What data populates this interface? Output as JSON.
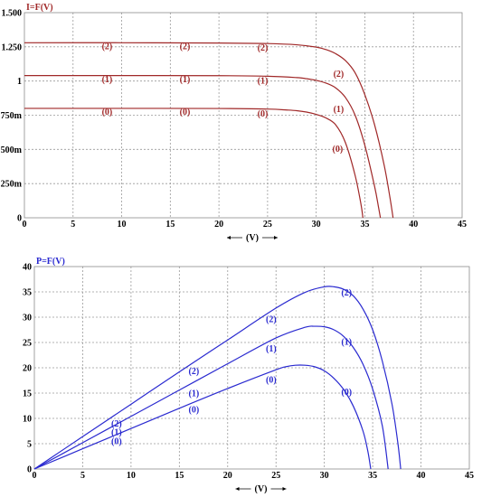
{
  "chart_data": [
    {
      "type": "line",
      "title": "I=F(V)",
      "xlabel": "(V)",
      "ylabel": "",
      "xlim": [
        0,
        45
      ],
      "ylim": [
        0,
        1.5
      ],
      "x_ticks": [
        0,
        5,
        10,
        15,
        20,
        25,
        30,
        35,
        40,
        45
      ],
      "x_tick_labels": [
        "0",
        "5",
        "10",
        "15",
        "20",
        "25",
        "30",
        "35",
        "40",
        "45"
      ],
      "y_ticks": [
        0,
        0.25,
        0.5,
        0.75,
        1.0,
        1.25,
        1.5
      ],
      "y_tick_labels": [
        "0",
        "250m",
        "500m",
        "750m",
        "1",
        "1.250",
        "1.500"
      ],
      "grid": true,
      "color": "#a02828",
      "series": [
        {
          "label": "(0)",
          "points": [
            [
              0,
              0.8
            ],
            [
              10,
              0.8
            ],
            [
              20,
              0.799
            ],
            [
              25,
              0.795
            ],
            [
              27,
              0.788
            ],
            [
              28,
              0.783
            ],
            [
              29,
              0.773
            ],
            [
              30,
              0.756
            ],
            [
              31,
              0.73
            ],
            [
              32,
              0.68
            ],
            [
              33,
              0.55
            ],
            [
              34,
              0.31
            ],
            [
              34.6,
              0.1
            ],
            [
              34.8,
              0.0
            ]
          ],
          "annotations": [
            [
              8.5,
              0.775
            ],
            [
              16.5,
              0.775
            ],
            [
              24.5,
              0.762
            ],
            [
              32.2,
              0.505
            ]
          ]
        },
        {
          "label": "(1)",
          "points": [
            [
              0,
              1.04
            ],
            [
              10,
              1.04
            ],
            [
              20,
              1.039
            ],
            [
              25,
              1.035
            ],
            [
              28,
              1.025
            ],
            [
              29,
              1.017
            ],
            [
              30,
              1.005
            ],
            [
              31,
              0.985
            ],
            [
              32,
              0.95
            ],
            [
              33,
              0.88
            ],
            [
              34,
              0.75
            ],
            [
              35,
              0.53
            ],
            [
              36,
              0.23
            ],
            [
              36.4,
              0.08
            ],
            [
              36.6,
              0.0
            ]
          ],
          "annotations": [
            [
              8.5,
              1.015
            ],
            [
              16.5,
              1.015
            ],
            [
              24.5,
              1.005
            ],
            [
              32.3,
              0.795
            ]
          ]
        },
        {
          "label": "(2)",
          "points": [
            [
              0,
              1.28
            ],
            [
              10,
              1.28
            ],
            [
              20,
              1.278
            ],
            [
              25,
              1.274
            ],
            [
              28,
              1.265
            ],
            [
              30,
              1.248
            ],
            [
              31,
              1.23
            ],
            [
              32,
              1.2
            ],
            [
              33,
              1.15
            ],
            [
              34,
              1.06
            ],
            [
              35,
              0.9
            ],
            [
              36,
              0.68
            ],
            [
              37,
              0.38
            ],
            [
              37.6,
              0.14
            ],
            [
              37.9,
              0.0
            ]
          ],
          "annotations": [
            [
              8.5,
              1.255
            ],
            [
              16.5,
              1.255
            ],
            [
              24.5,
              1.245
            ],
            [
              32.3,
              1.055
            ]
          ]
        }
      ]
    },
    {
      "type": "line",
      "title": "P=F(V)",
      "xlabel": "(V)",
      "ylabel": "",
      "xlim": [
        0,
        45
      ],
      "ylim": [
        0,
        40
      ],
      "x_ticks": [
        0,
        5,
        10,
        15,
        20,
        25,
        30,
        35,
        40,
        45
      ],
      "x_tick_labels": [
        "0",
        "5",
        "10",
        "15",
        "20",
        "25",
        "30",
        "35",
        "40",
        "45"
      ],
      "y_ticks": [
        0,
        5,
        10,
        15,
        20,
        25,
        30,
        35,
        40
      ],
      "y_tick_labels": [
        "0",
        "5",
        "10",
        "15",
        "20",
        "25",
        "30",
        "35",
        "40"
      ],
      "grid": true,
      "color": "#2a2ad0",
      "series": [
        {
          "label": "(0)",
          "points": [
            [
              0,
              0
            ],
            [
              5,
              4
            ],
            [
              10,
              8
            ],
            [
              15,
              12
            ],
            [
              20,
              15.9
            ],
            [
              25,
              19.6
            ],
            [
              26,
              20.2
            ],
            [
              27,
              20.5
            ],
            [
              28,
              20.5
            ],
            [
              29,
              20.2
            ],
            [
              30,
              19.4
            ],
            [
              31,
              17.9
            ],
            [
              32,
              15.7
            ],
            [
              33,
              12.4
            ],
            [
              34,
              7.5
            ],
            [
              34.5,
              3.5
            ],
            [
              34.8,
              0
            ]
          ],
          "annotations": [
            [
              8.5,
              5.5
            ],
            [
              16.5,
              11.8
            ],
            [
              24.5,
              17.7
            ],
            [
              32.3,
              15.3
            ]
          ]
        },
        {
          "label": "(1)",
          "points": [
            [
              0,
              0
            ],
            [
              5,
              5.2
            ],
            [
              10,
              10.4
            ],
            [
              15,
              15.6
            ],
            [
              20,
              20.8
            ],
            [
              25,
              25.9
            ],
            [
              28,
              28.0
            ],
            [
              29,
              28.2
            ],
            [
              30,
              28.1
            ],
            [
              31,
              27.5
            ],
            [
              32,
              26.2
            ],
            [
              33,
              24.0
            ],
            [
              34,
              20.7
            ],
            [
              35,
              15.8
            ],
            [
              36,
              8.5
            ],
            [
              36.6,
              0
            ]
          ],
          "annotations": [
            [
              8.5,
              7.3
            ],
            [
              16.5,
              15.0
            ],
            [
              24.5,
              23.8
            ],
            [
              32.3,
              25.2
            ]
          ]
        },
        {
          "label": "(2)",
          "points": [
            [
              0,
              0
            ],
            [
              5,
              6.4
            ],
            [
              10,
              12.8
            ],
            [
              15,
              19.2
            ],
            [
              20,
              25.5
            ],
            [
              25,
              31.8
            ],
            [
              28,
              34.9
            ],
            [
              30,
              36.0
            ],
            [
              31,
              36.0
            ],
            [
              32,
              35.5
            ],
            [
              33,
              34.2
            ],
            [
              34,
              31.6
            ],
            [
              35,
              27.5
            ],
            [
              36,
              21.3
            ],
            [
              37,
              12.8
            ],
            [
              37.6,
              5.2
            ],
            [
              37.9,
              0
            ]
          ],
          "annotations": [
            [
              8.5,
              9.0
            ],
            [
              16.5,
              19.4
            ],
            [
              24.5,
              29.6
            ],
            [
              32.3,
              34.9
            ]
          ]
        }
      ]
    }
  ]
}
